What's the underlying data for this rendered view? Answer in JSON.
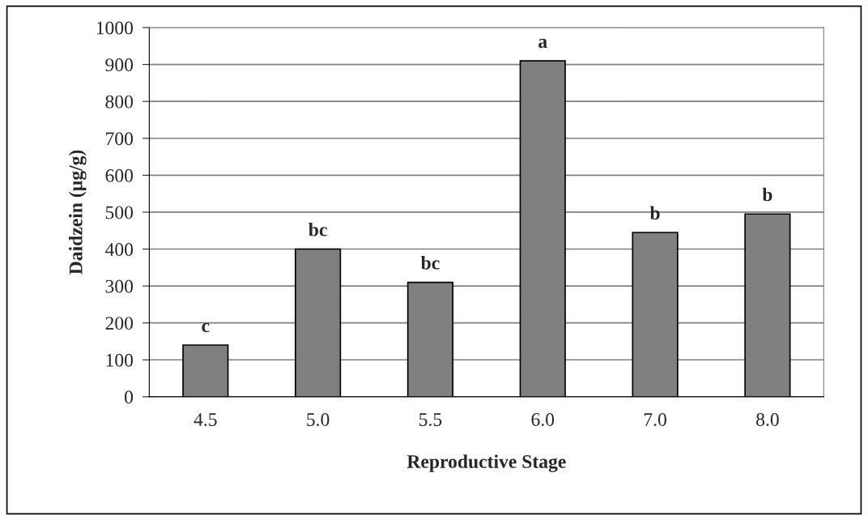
{
  "chart_data": {
    "type": "bar",
    "xlabel": "Reproductive Stage",
    "ylabel": "Daidzein (µg/g)",
    "categories": [
      "4.5",
      "5.0",
      "5.5",
      "6.0",
      "7.0",
      "8.0"
    ],
    "values": [
      140,
      400,
      310,
      910,
      445,
      495
    ],
    "color": "#808080",
    "ylim": [
      0,
      1000
    ],
    "yticks": [
      0,
      100,
      200,
      300,
      400,
      500,
      600,
      700,
      800,
      900,
      1000
    ],
    "grid": "y",
    "annotations": [
      {
        "text": "c",
        "x": "4.5",
        "y": 140
      },
      {
        "text": "bc",
        "x": "5.0",
        "y": 400
      },
      {
        "text": "bc",
        "x": "5.5",
        "y": 310
      },
      {
        "text": "a",
        "x": "6.0",
        "y": 910
      },
      {
        "text": "b",
        "x": "7.0",
        "y": 445
      },
      {
        "text": "b",
        "x": "8.0",
        "y": 495
      }
    ]
  }
}
